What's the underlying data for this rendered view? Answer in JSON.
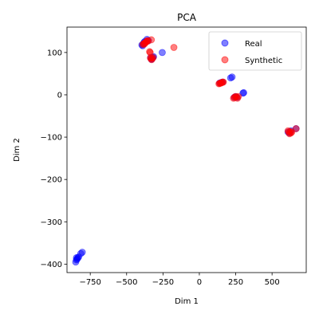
{
  "chart_data": {
    "type": "scatter",
    "title": "PCA",
    "xlabel": "Dim 1",
    "ylabel": "Dim 2",
    "xlim": [
      -910,
      735
    ],
    "ylim": [
      -420,
      160
    ],
    "xticks": [
      -750,
      -500,
      -250,
      0,
      250,
      500
    ],
    "xtick_labels": [
      "−750",
      "−500",
      "−250",
      "0",
      "250",
      "500"
    ],
    "yticks": [
      100,
      0,
      -100,
      -200,
      -300,
      -400
    ],
    "ytick_labels": [
      "100",
      "0",
      "−100",
      "−200",
      "−300",
      "−400"
    ],
    "grid": false,
    "legend_position": "top-right",
    "series": [
      {
        "name": "Real",
        "color": "#0000ff",
        "opacity": 0.5,
        "points": [
          [
            -850,
            -395
          ],
          [
            -845,
            -390
          ],
          [
            -840,
            -388
          ],
          [
            -835,
            -385
          ],
          [
            -830,
            -383
          ],
          [
            -845,
            -385
          ],
          [
            -815,
            -375
          ],
          [
            -805,
            -372
          ],
          [
            -395,
            118
          ],
          [
            -390,
            116
          ],
          [
            -385,
            120
          ],
          [
            -380,
            124
          ],
          [
            -375,
            126
          ],
          [
            -360,
            131
          ],
          [
            -350,
            128
          ],
          [
            -335,
            88
          ],
          [
            -330,
            84
          ],
          [
            -325,
            85
          ],
          [
            -320,
            88
          ],
          [
            -315,
            90
          ],
          [
            -255,
            100
          ],
          [
            140,
            28
          ],
          [
            150,
            29
          ],
          [
            160,
            30
          ],
          [
            215,
            40
          ],
          [
            225,
            42
          ],
          [
            240,
            -6
          ],
          [
            250,
            -4
          ],
          [
            260,
            -6
          ],
          [
            300,
            4
          ],
          [
            305,
            5
          ],
          [
            610,
            -88
          ],
          [
            620,
            -90
          ],
          [
            630,
            -85
          ],
          [
            665,
            -80
          ]
        ]
      },
      {
        "name": "Synthetic",
        "color": "#ff0000",
        "opacity": 0.5,
        "points": [
          [
            -388,
            119
          ],
          [
            -382,
            121
          ],
          [
            -378,
            120
          ],
          [
            -372,
            123
          ],
          [
            -368,
            124
          ],
          [
            -362,
            126
          ],
          [
            -358,
            128
          ],
          [
            -352,
            127
          ],
          [
            -330,
            130
          ],
          [
            -342,
            102
          ],
          [
            -338,
            100
          ],
          [
            -336,
            87
          ],
          [
            -332,
            86
          ],
          [
            -328,
            83
          ],
          [
            -324,
            86
          ],
          [
            -318,
            88
          ],
          [
            -175,
            112
          ],
          [
            135,
            26
          ],
          [
            140,
            27
          ],
          [
            145,
            28
          ],
          [
            150,
            28
          ],
          [
            155,
            29
          ],
          [
            160,
            30
          ],
          [
            165,
            30
          ],
          [
            235,
            -8
          ],
          [
            242,
            -6
          ],
          [
            248,
            -4
          ],
          [
            255,
            -5
          ],
          [
            262,
            -8
          ],
          [
            268,
            -4
          ],
          [
            610,
            -85
          ],
          [
            615,
            -88
          ],
          [
            620,
            -92
          ],
          [
            625,
            -87
          ],
          [
            630,
            -90
          ],
          [
            635,
            -88
          ],
          [
            665,
            -80
          ]
        ]
      }
    ]
  }
}
